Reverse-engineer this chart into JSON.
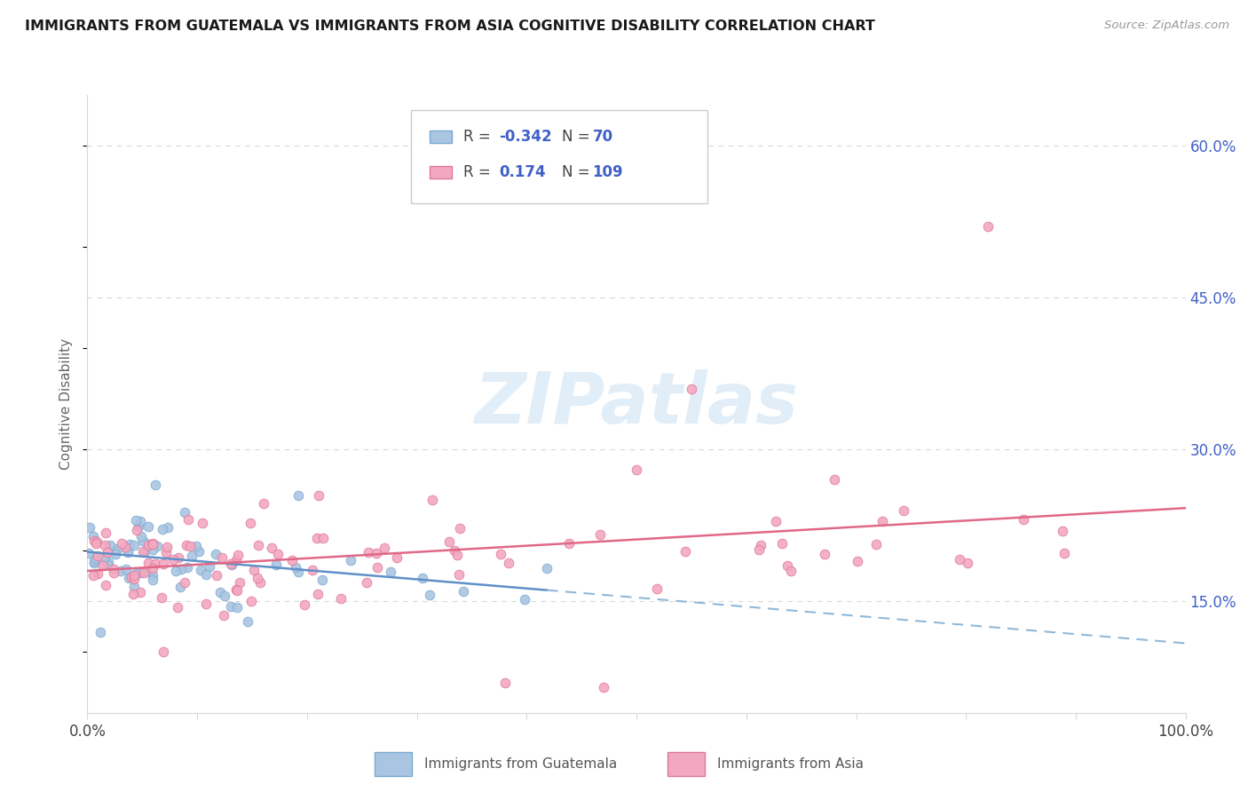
{
  "title": "IMMIGRANTS FROM GUATEMALA VS IMMIGRANTS FROM ASIA COGNITIVE DISABILITY CORRELATION CHART",
  "source": "Source: ZipAtlas.com",
  "ylabel": "Cognitive Disability",
  "legend1_R": -0.342,
  "legend1_N": 70,
  "legend2_R": 0.174,
  "legend2_N": 109,
  "xlim": [
    0.0,
    1.0
  ],
  "ylim": [
    0.04,
    0.65
  ],
  "xtick_vals": [
    0.0,
    0.1,
    0.2,
    0.3,
    0.4,
    0.5,
    0.6,
    0.7,
    0.8,
    0.9,
    1.0
  ],
  "xticklabels_show": {
    "0.0": "0.0%",
    "1.0": "100.0%"
  },
  "ytick_right_vals": [
    0.15,
    0.3,
    0.45,
    0.6
  ],
  "ytick_right_labels": [
    "15.0%",
    "30.0%",
    "45.0%",
    "60.0%"
  ],
  "color_blue": "#aac5e2",
  "color_pink": "#f2a8c0",
  "edge_blue": "#7aaad0",
  "edge_pink": "#e07898",
  "line_blue_solid": "#6090c8",
  "line_blue_dash": "#90b8d8",
  "line_pink": "#e06888",
  "background": "#ffffff",
  "watermark": "ZIPatlas",
  "legend_color": "#4060c8",
  "grid_color": "#d8d8d8",
  "seed": 7
}
